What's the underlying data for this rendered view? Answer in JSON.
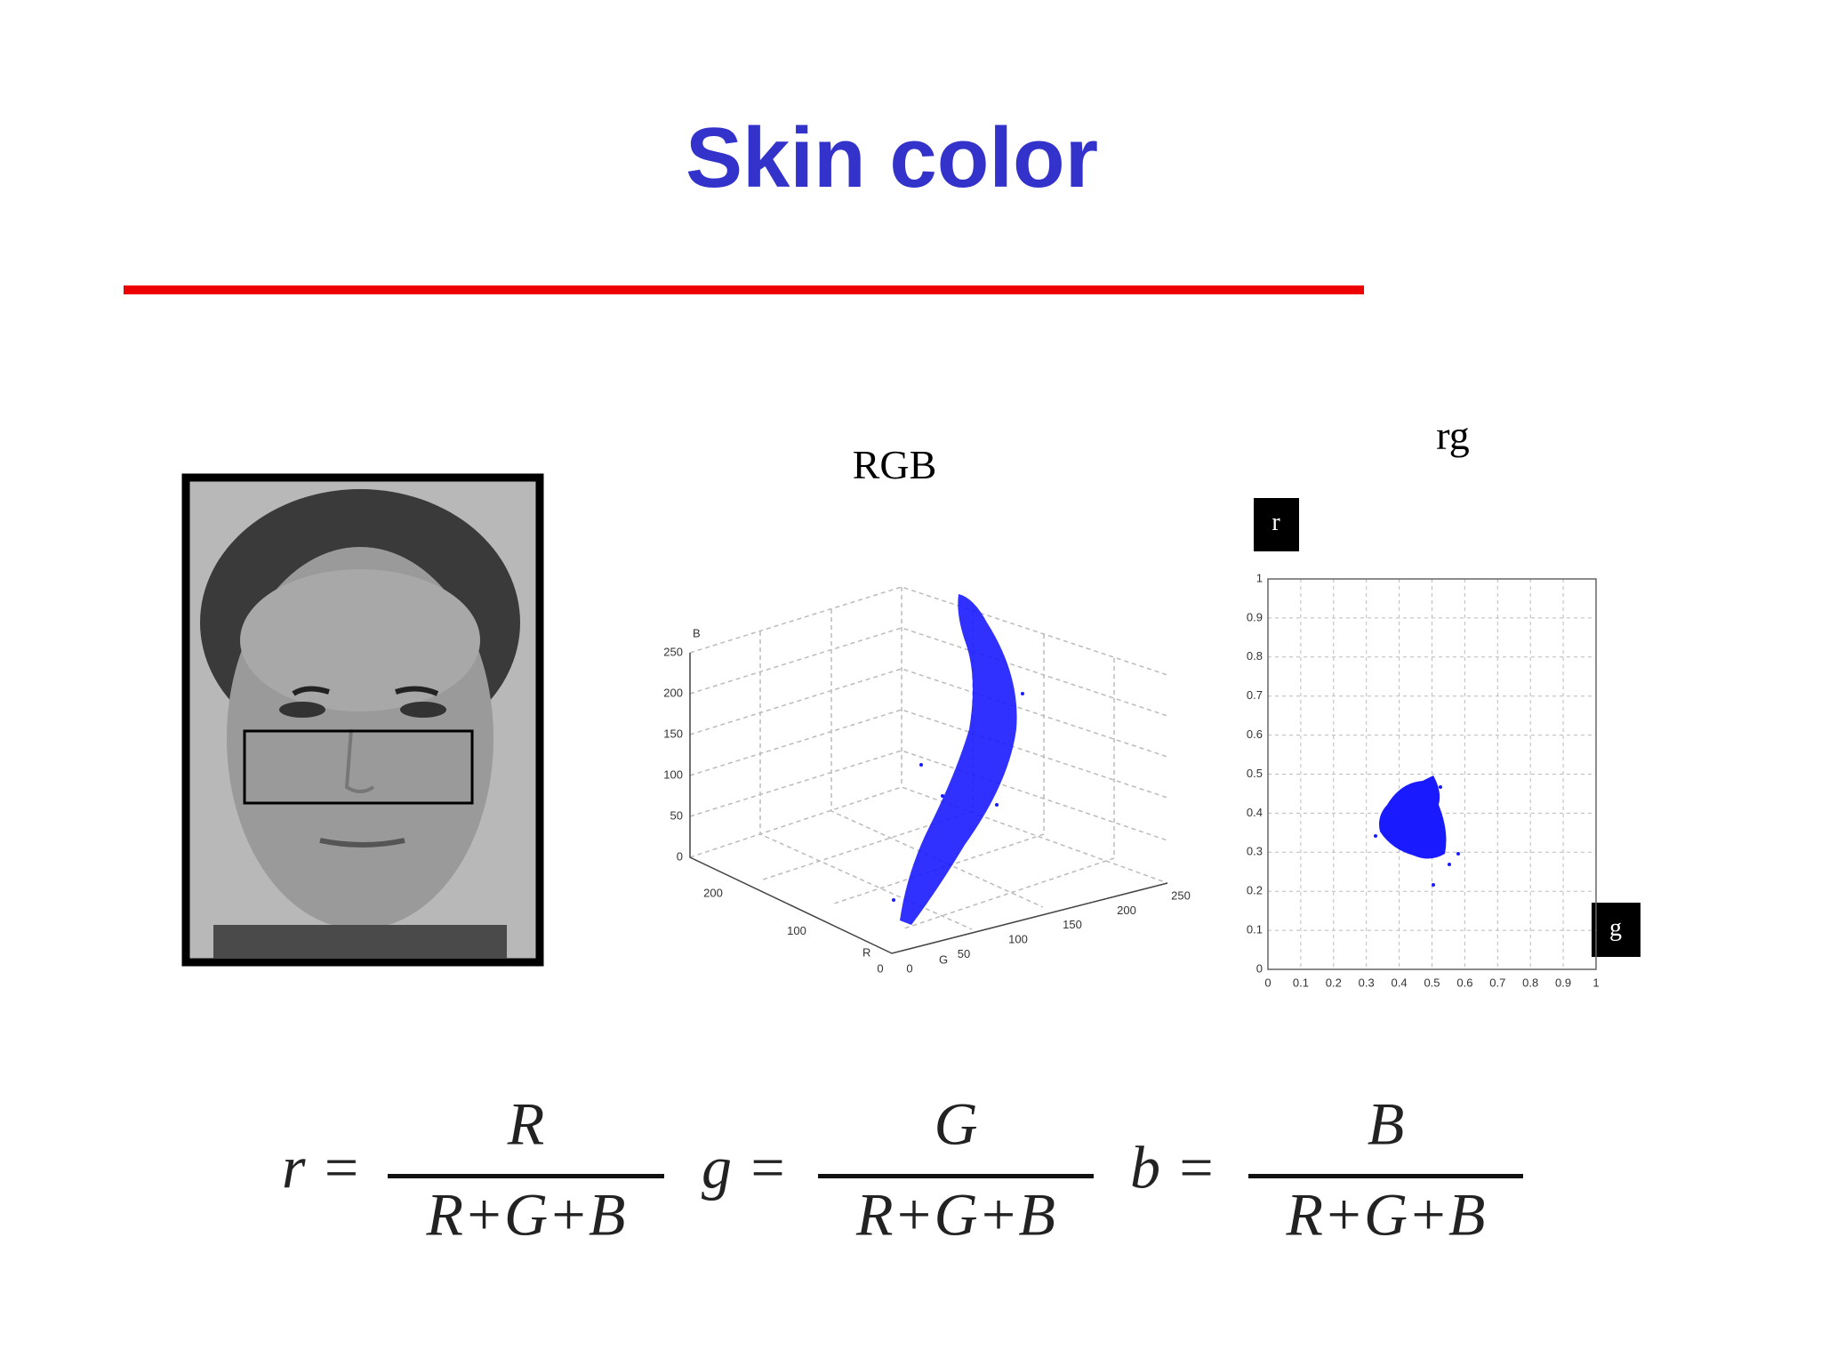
{
  "title": "Skin color",
  "rgb_plot": {
    "label": "RGB",
    "axis_labels": {
      "B": "B",
      "R": "R",
      "G": "G"
    },
    "b_ticks": [
      250,
      200,
      150,
      100,
      50,
      0
    ],
    "r_ticks": [
      200,
      100,
      0
    ],
    "g_ticks": [
      0,
      50,
      100,
      150,
      200,
      250
    ]
  },
  "rg_plot": {
    "label": "rg",
    "y_label": "r",
    "x_label": "g",
    "xlim": [
      0,
      1
    ],
    "ylim": [
      0,
      1
    ],
    "xticks": [
      0,
      0.1,
      0.2,
      0.3,
      0.4,
      0.5,
      0.6,
      0.7,
      0.8,
      0.9,
      1
    ],
    "yticks": [
      0,
      0.1,
      0.2,
      0.3,
      0.4,
      0.5,
      0.6,
      0.7,
      0.8,
      0.9,
      1
    ]
  },
  "formulas": [
    {
      "lhs": "r =",
      "numerator": "R",
      "denominator": "R+G+B"
    },
    {
      "lhs": "g =",
      "numerator": "G",
      "denominator": "R+G+B"
    },
    {
      "lhs": "b =",
      "numerator": "B",
      "denominator": "R+G+B"
    }
  ]
}
